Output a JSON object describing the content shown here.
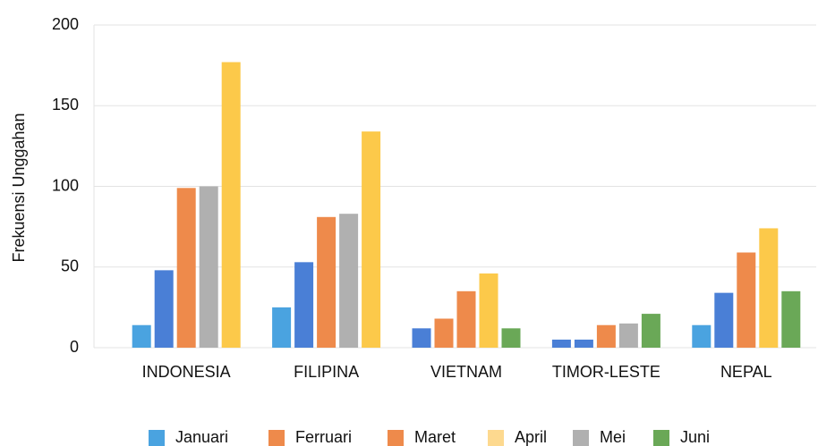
{
  "chart_data": {
    "type": "bar",
    "y_label": "Frekuensi Unggahan",
    "categories": [
      "INDONESIA",
      "FILIPINA",
      "VIETNAM",
      "TIMOR-LESTE",
      "NEPAL"
    ],
    "bar_values": [
      [
        14,
        48,
        99,
        100,
        177
      ],
      [
        25,
        53,
        81,
        83,
        134
      ],
      [
        12,
        18,
        35,
        46,
        12
      ],
      [
        5,
        5,
        14,
        15,
        21
      ],
      [
        14,
        34,
        59,
        74,
        35
      ]
    ],
    "bar_colors": [
      [
        "#4aa3e0",
        "#4a7fd6",
        "#ee8a4b",
        "#b0b0b0",
        "#fcc94a"
      ],
      [
        "#4aa3e0",
        "#4a7fd6",
        "#ee8a4b",
        "#b0b0b0",
        "#fcc94a"
      ],
      [
        "#4a7fd6",
        "#ee8a4b",
        "#ee8a4b",
        "#fcc94a",
        "#6aa857"
      ],
      [
        "#4a7fd6",
        "#4a7fd6",
        "#ee8a4b",
        "#b0b0b0",
        "#6aa857"
      ],
      [
        "#4aa3e0",
        "#4a7fd6",
        "#ee8a4b",
        "#fcc94a",
        "#6aa857"
      ]
    ],
    "legend": [
      {
        "name": "Januari",
        "color": "#4aa3e0"
      },
      {
        "name": "Ferruari",
        "color": "#ee8a4b"
      },
      {
        "name": "Maret",
        "color": "#ee8a4b"
      },
      {
        "name": "April",
        "color": "#fdd98f"
      },
      {
        "name": "Mei",
        "color": "#b0b0b0"
      },
      {
        "name": "Juni",
        "color": "#6aa857"
      }
    ],
    "ylim": [
      0,
      200
    ],
    "yticks": [
      0,
      50,
      100,
      150,
      200
    ],
    "grid": true
  }
}
